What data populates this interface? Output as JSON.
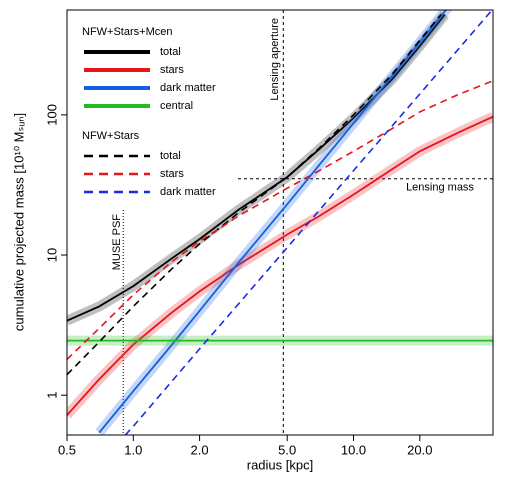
{
  "chart_data": {
    "type": "line",
    "xlabel": "radius [kpc]",
    "ylabel": "cumulative projected mass [10¹⁰ Mₛᵤₙ]",
    "xscale": "log",
    "yscale": "log",
    "xlim": [
      0.5,
      43
    ],
    "ylim": [
      0.52,
      560
    ],
    "xticks": [
      0.5,
      {
        "value": 1,
        "label": "1.0"
      },
      {
        "value": 2,
        "label": "2.0"
      },
      {
        "value": 5,
        "label": "5.0"
      },
      {
        "value": 10,
        "label": "10.0"
      },
      {
        "value": 20,
        "label": "20.0"
      }
    ],
    "yticks": [
      1,
      10,
      100
    ],
    "groups": [
      {
        "name": "NFW+Stars+Mcen",
        "dashed": false,
        "series": [
          {
            "name": "total",
            "color": "#000000",
            "x": [
              0.5,
              0.7,
              1,
              1.5,
              2,
              3,
              5,
              7,
              10,
              15,
              20,
              26
            ],
            "values": [
              3.4,
              4.3,
              6.0,
              9.5,
              13,
              21,
              36,
              57,
              95,
              180,
              310,
              520
            ]
          },
          {
            "name": "stars",
            "color": "#e8141b",
            "x": [
              0.5,
              0.7,
              1,
              1.5,
              2,
              3,
              5,
              7,
              10,
              15,
              20,
              30,
              43
            ],
            "values": [
              0.72,
              1.3,
              2.3,
              3.9,
              5.5,
              8.5,
              14,
              19,
              27,
              41,
              55,
              75,
              97
            ]
          },
          {
            "name": "dark matter",
            "color": "#1560e0",
            "x": [
              0.7,
              1,
              1.5,
              2,
              3,
              5,
              7,
              10,
              15,
              20,
              27
            ],
            "values": [
              0.54,
              1.07,
              2.3,
              4.0,
              8.8,
              23,
              44,
              87,
              190,
              330,
              590
            ]
          },
          {
            "name": "central",
            "color": "#22bb22",
            "x": [
              0.5,
              43
            ],
            "values": [
              2.45,
              2.45
            ]
          }
        ]
      },
      {
        "name": "NFW+Stars",
        "dashed": true,
        "series": [
          {
            "name": "total",
            "color": "#000000",
            "x": [
              0.5,
              0.7,
              1,
              1.5,
              2,
              3,
              5,
              7,
              10,
              15,
              20,
              25
            ],
            "values": [
              1.4,
              2.4,
              4.3,
              8.0,
              12,
              20,
              36,
              58,
              100,
              195,
              340,
              520
            ]
          },
          {
            "name": "stars",
            "color": "#e8141b",
            "x": [
              0.5,
              0.7,
              1,
              1.5,
              2,
              3,
              5,
              7,
              10,
              15,
              20,
              30,
              43
            ],
            "values": [
              1.8,
              3.0,
              5.2,
              9.0,
              12.5,
              19,
              30,
              40,
              55,
              80,
              105,
              140,
              175
            ]
          },
          {
            "name": "dark matter",
            "color": "#1a2be6",
            "x": [
              0.92,
              1,
              2,
              5,
              10,
              20,
              43
            ],
            "values": [
              0.52,
              0.6,
              2.14,
              11.3,
              40,
              141,
              570
            ]
          }
        ]
      }
    ],
    "annotations": [
      {
        "text": "Lensing aperture",
        "x": 4.8
      },
      {
        "text": "Lensing mass",
        "y": 35
      },
      {
        "text": "MUSE PSF",
        "x": 0.9
      }
    ]
  }
}
